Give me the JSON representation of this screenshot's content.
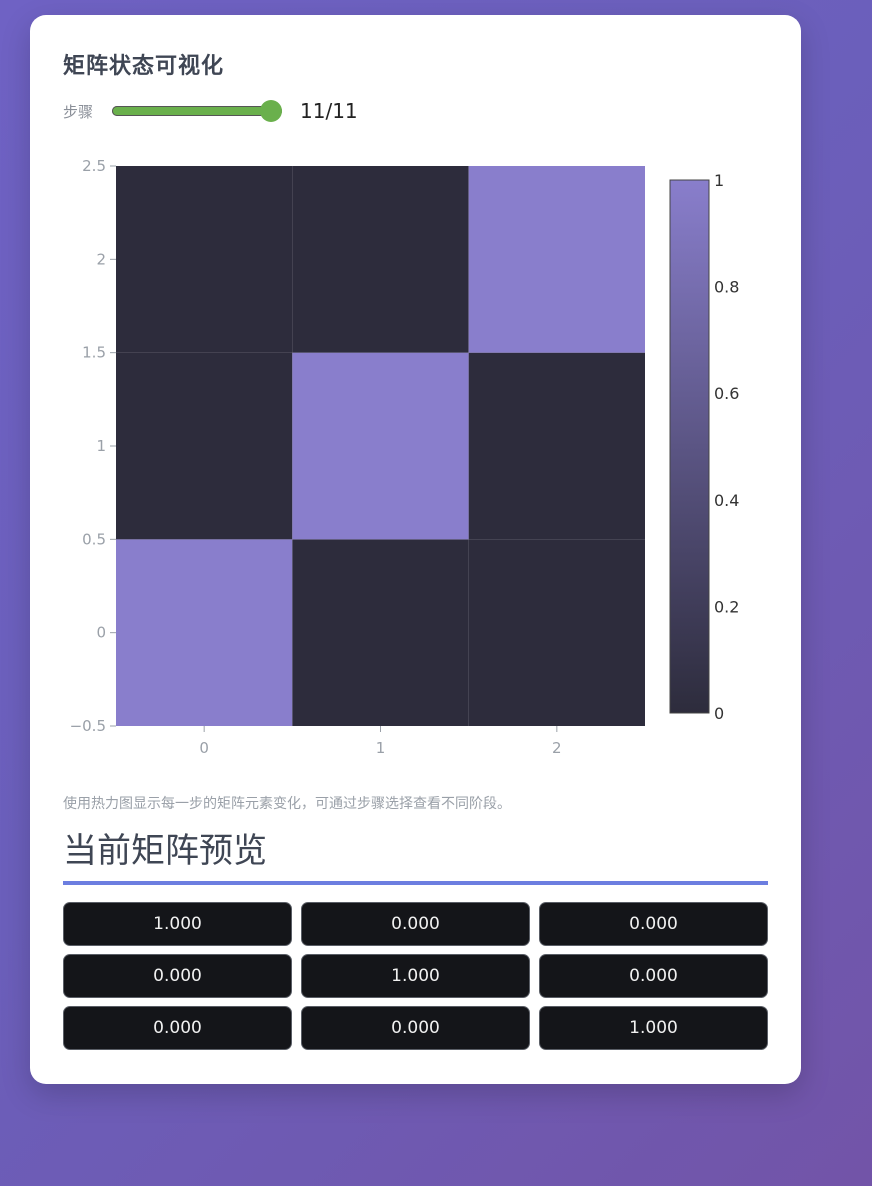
{
  "title": "矩阵状态可视化",
  "step": {
    "label": "步骤",
    "display": "11/11",
    "current": 11,
    "max": 11
  },
  "chart_data": {
    "type": "heatmap",
    "x": [
      0,
      1,
      2
    ],
    "y": [
      0,
      1,
      2
    ],
    "z": [
      [
        1,
        0,
        0
      ],
      [
        0,
        1,
        0
      ],
      [
        0,
        0,
        1
      ]
    ],
    "xlim": [
      -0.5,
      2.5
    ],
    "ylim": [
      -0.5,
      2.5
    ],
    "x_ticks": [
      "0",
      "1",
      "2"
    ],
    "y_ticks": [
      "−0.5",
      "0",
      "0.5",
      "1",
      "1.5",
      "2",
      "2.5"
    ],
    "colorbar": {
      "min": 0,
      "max": 1,
      "ticks": [
        "0",
        "0.2",
        "0.4",
        "0.6",
        "0.8",
        "1"
      ],
      "low_color": "#2d2c3c",
      "high_color": "#897ecc"
    },
    "grid": false,
    "xlabel": "",
    "ylabel": "",
    "title": ""
  },
  "caption": "使用热力图显示每一步的矩阵元素变化，可通过步骤选择查看不同阶段。",
  "preview": {
    "title": "当前矩阵预览",
    "rows": [
      [
        "1.000",
        "0.000",
        "0.000"
      ],
      [
        "0.000",
        "1.000",
        "0.000"
      ],
      [
        "0.000",
        "0.000",
        "1.000"
      ]
    ]
  },
  "colors": {
    "accent": "#6c7ee0",
    "slider": "#6ab04c"
  }
}
